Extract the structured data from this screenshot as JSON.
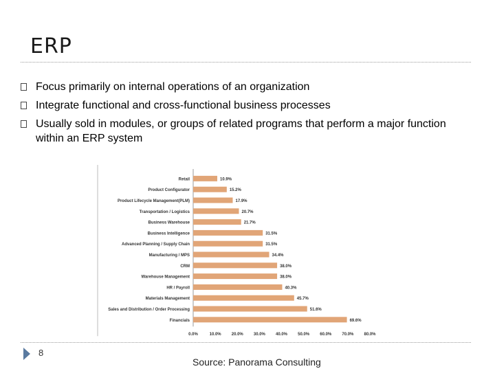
{
  "slide": {
    "title": "ERP",
    "bullets": [
      "Focus primarily on internal operations of an organization",
      "Integrate functional and cross-functional business processes",
      "Usually sold in modules, or groups of related programs that perform a major function within an ERP system"
    ],
    "page_number": "8",
    "source": "Source: Panorama Consulting"
  },
  "colors": {
    "bar": "#e1a577",
    "text": "#333333"
  },
  "chart_data": {
    "type": "bar",
    "orientation": "horizontal",
    "categories": [
      "Retail",
      "Product Configurator",
      "Product Lifecycle Management(PLM)",
      "Transportation / Logistics",
      "Business Warehouse",
      "Business Intelligence",
      "Advanced Planning / Supply Chain",
      "Manufacturing / MPS",
      "CRM",
      "Warehouse Management",
      "HR / Payroll",
      "Materials Management",
      "Sales and Distribution / Order Processing",
      "Financials"
    ],
    "values": [
      10.9,
      15.2,
      17.9,
      20.7,
      21.7,
      31.5,
      31.5,
      34.4,
      38.0,
      38.0,
      40.3,
      45.7,
      51.6,
      69.6
    ],
    "value_labels": [
      "10.9%",
      "15.2%",
      "17.9%",
      "20.7%",
      "21.7%",
      "31.5%",
      "31.5%",
      "34.4%",
      "38.0%",
      "38.0%",
      "40.3%",
      "45.7%",
      "51.6%",
      "69.6%"
    ],
    "xlim": [
      0,
      80
    ],
    "xticks": [
      "0.0%",
      "10.0%",
      "20.0%",
      "30.0%",
      "40.0%",
      "50.0%",
      "60.0%",
      "70.0%",
      "80.0%"
    ],
    "title": "",
    "xlabel": "",
    "ylabel": ""
  }
}
